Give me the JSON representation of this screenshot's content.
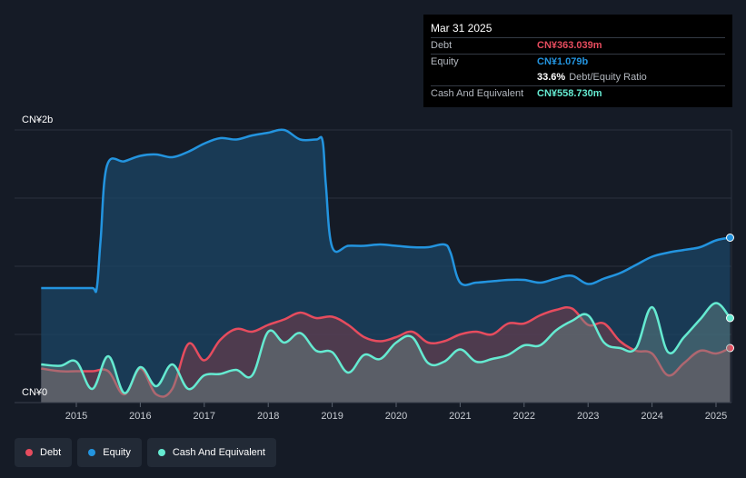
{
  "tooltip": {
    "date": "Mar 31 2025",
    "debt_label": "Debt",
    "debt_value": "CN¥363.039m",
    "equity_label": "Equity",
    "equity_value": "CN¥1.079b",
    "ratio_value": "33.6%",
    "ratio_label": "Debt/Equity Ratio",
    "cash_label": "Cash And Equivalent",
    "cash_value": "CN¥558.730m"
  },
  "legend": [
    {
      "label": "Debt",
      "color": "#e64c5e"
    },
    {
      "label": "Equity",
      "color": "#2394df"
    },
    {
      "label": "Cash And Equivalent",
      "color": "#65ead1"
    }
  ],
  "chart_data": {
    "type": "area",
    "y_unit": "CN¥",
    "ylim": [
      0,
      2.0
    ],
    "xlim": [
      2014.5,
      2025.25
    ],
    "y_tick_labels": [
      {
        "value": 2.0,
        "label": "CN¥2b"
      },
      {
        "value": 0,
        "label": "CN¥0"
      }
    ],
    "x_ticks": [
      2015,
      2016,
      2017,
      2018,
      2019,
      2020,
      2021,
      2022,
      2023,
      2024,
      2025
    ],
    "grid": true,
    "series": [
      {
        "name": "Equity",
        "color": "#2394df",
        "points": [
          [
            2014.45,
            0.84
          ],
          [
            2015.0,
            0.84
          ],
          [
            2015.25,
            0.84
          ],
          [
            2015.32,
            0.84
          ],
          [
            2015.38,
            1.2
          ],
          [
            2015.48,
            1.74
          ],
          [
            2015.75,
            1.77
          ],
          [
            2016.0,
            1.81
          ],
          [
            2016.25,
            1.82
          ],
          [
            2016.5,
            1.8
          ],
          [
            2016.75,
            1.84
          ],
          [
            2017.0,
            1.9
          ],
          [
            2017.25,
            1.94
          ],
          [
            2017.5,
            1.93
          ],
          [
            2017.75,
            1.96
          ],
          [
            2018.0,
            1.98
          ],
          [
            2018.25,
            2.0
          ],
          [
            2018.5,
            1.93
          ],
          [
            2018.75,
            1.93
          ],
          [
            2018.85,
            1.92
          ],
          [
            2018.9,
            1.6
          ],
          [
            2019.0,
            1.14
          ],
          [
            2019.25,
            1.15
          ],
          [
            2019.5,
            1.15
          ],
          [
            2019.75,
            1.16
          ],
          [
            2020.0,
            1.15
          ],
          [
            2020.25,
            1.14
          ],
          [
            2020.5,
            1.14
          ],
          [
            2020.75,
            1.16
          ],
          [
            2020.85,
            1.1
          ],
          [
            2021.0,
            0.88
          ],
          [
            2021.25,
            0.88
          ],
          [
            2021.5,
            0.89
          ],
          [
            2021.75,
            0.9
          ],
          [
            2022.0,
            0.9
          ],
          [
            2022.25,
            0.88
          ],
          [
            2022.5,
            0.91
          ],
          [
            2022.75,
            0.93
          ],
          [
            2023.0,
            0.87
          ],
          [
            2023.25,
            0.91
          ],
          [
            2023.5,
            0.95
          ],
          [
            2023.75,
            1.01
          ],
          [
            2024.0,
            1.07
          ],
          [
            2024.25,
            1.1
          ],
          [
            2024.5,
            1.12
          ],
          [
            2024.75,
            1.14
          ],
          [
            2025.0,
            1.19
          ],
          [
            2025.22,
            1.21
          ]
        ]
      },
      {
        "name": "Debt",
        "color": "#e64c5e",
        "points": [
          [
            2014.45,
            0.25
          ],
          [
            2014.75,
            0.23
          ],
          [
            2015.0,
            0.23
          ],
          [
            2015.25,
            0.23
          ],
          [
            2015.5,
            0.23
          ],
          [
            2015.75,
            0.06
          ],
          [
            2016.0,
            0.25
          ],
          [
            2016.25,
            0.06
          ],
          [
            2016.5,
            0.1
          ],
          [
            2016.75,
            0.43
          ],
          [
            2017.0,
            0.31
          ],
          [
            2017.25,
            0.46
          ],
          [
            2017.5,
            0.54
          ],
          [
            2017.75,
            0.52
          ],
          [
            2018.0,
            0.57
          ],
          [
            2018.25,
            0.61
          ],
          [
            2018.5,
            0.66
          ],
          [
            2018.75,
            0.62
          ],
          [
            2019.0,
            0.63
          ],
          [
            2019.25,
            0.57
          ],
          [
            2019.5,
            0.48
          ],
          [
            2019.75,
            0.45
          ],
          [
            2020.0,
            0.48
          ],
          [
            2020.25,
            0.52
          ],
          [
            2020.5,
            0.44
          ],
          [
            2020.75,
            0.45
          ],
          [
            2021.0,
            0.5
          ],
          [
            2021.25,
            0.52
          ],
          [
            2021.5,
            0.5
          ],
          [
            2021.75,
            0.58
          ],
          [
            2022.0,
            0.58
          ],
          [
            2022.25,
            0.64
          ],
          [
            2022.5,
            0.68
          ],
          [
            2022.75,
            0.69
          ],
          [
            2023.0,
            0.57
          ],
          [
            2023.25,
            0.58
          ],
          [
            2023.5,
            0.45
          ],
          [
            2023.75,
            0.38
          ],
          [
            2024.0,
            0.36
          ],
          [
            2024.25,
            0.2
          ],
          [
            2024.5,
            0.29
          ],
          [
            2024.75,
            0.38
          ],
          [
            2025.0,
            0.36
          ],
          [
            2025.22,
            0.4
          ]
        ]
      },
      {
        "name": "Cash And Equivalent",
        "color": "#65ead1",
        "points": [
          [
            2014.45,
            0.28
          ],
          [
            2014.75,
            0.27
          ],
          [
            2015.0,
            0.3
          ],
          [
            2015.25,
            0.1
          ],
          [
            2015.5,
            0.34
          ],
          [
            2015.75,
            0.07
          ],
          [
            2016.0,
            0.26
          ],
          [
            2016.25,
            0.12
          ],
          [
            2016.5,
            0.28
          ],
          [
            2016.75,
            0.1
          ],
          [
            2017.0,
            0.2
          ],
          [
            2017.25,
            0.21
          ],
          [
            2017.5,
            0.24
          ],
          [
            2017.75,
            0.2
          ],
          [
            2018.0,
            0.52
          ],
          [
            2018.25,
            0.44
          ],
          [
            2018.5,
            0.51
          ],
          [
            2018.75,
            0.38
          ],
          [
            2019.0,
            0.37
          ],
          [
            2019.25,
            0.22
          ],
          [
            2019.5,
            0.35
          ],
          [
            2019.75,
            0.32
          ],
          [
            2020.0,
            0.44
          ],
          [
            2020.25,
            0.48
          ],
          [
            2020.5,
            0.29
          ],
          [
            2020.75,
            0.3
          ],
          [
            2021.0,
            0.39
          ],
          [
            2021.25,
            0.3
          ],
          [
            2021.5,
            0.32
          ],
          [
            2021.75,
            0.35
          ],
          [
            2022.0,
            0.42
          ],
          [
            2022.25,
            0.42
          ],
          [
            2022.5,
            0.53
          ],
          [
            2022.75,
            0.6
          ],
          [
            2023.0,
            0.64
          ],
          [
            2023.25,
            0.44
          ],
          [
            2023.5,
            0.4
          ],
          [
            2023.75,
            0.4
          ],
          [
            2024.0,
            0.7
          ],
          [
            2024.25,
            0.37
          ],
          [
            2024.5,
            0.48
          ],
          [
            2024.75,
            0.61
          ],
          [
            2025.0,
            0.73
          ],
          [
            2025.22,
            0.62
          ]
        ]
      }
    ]
  }
}
